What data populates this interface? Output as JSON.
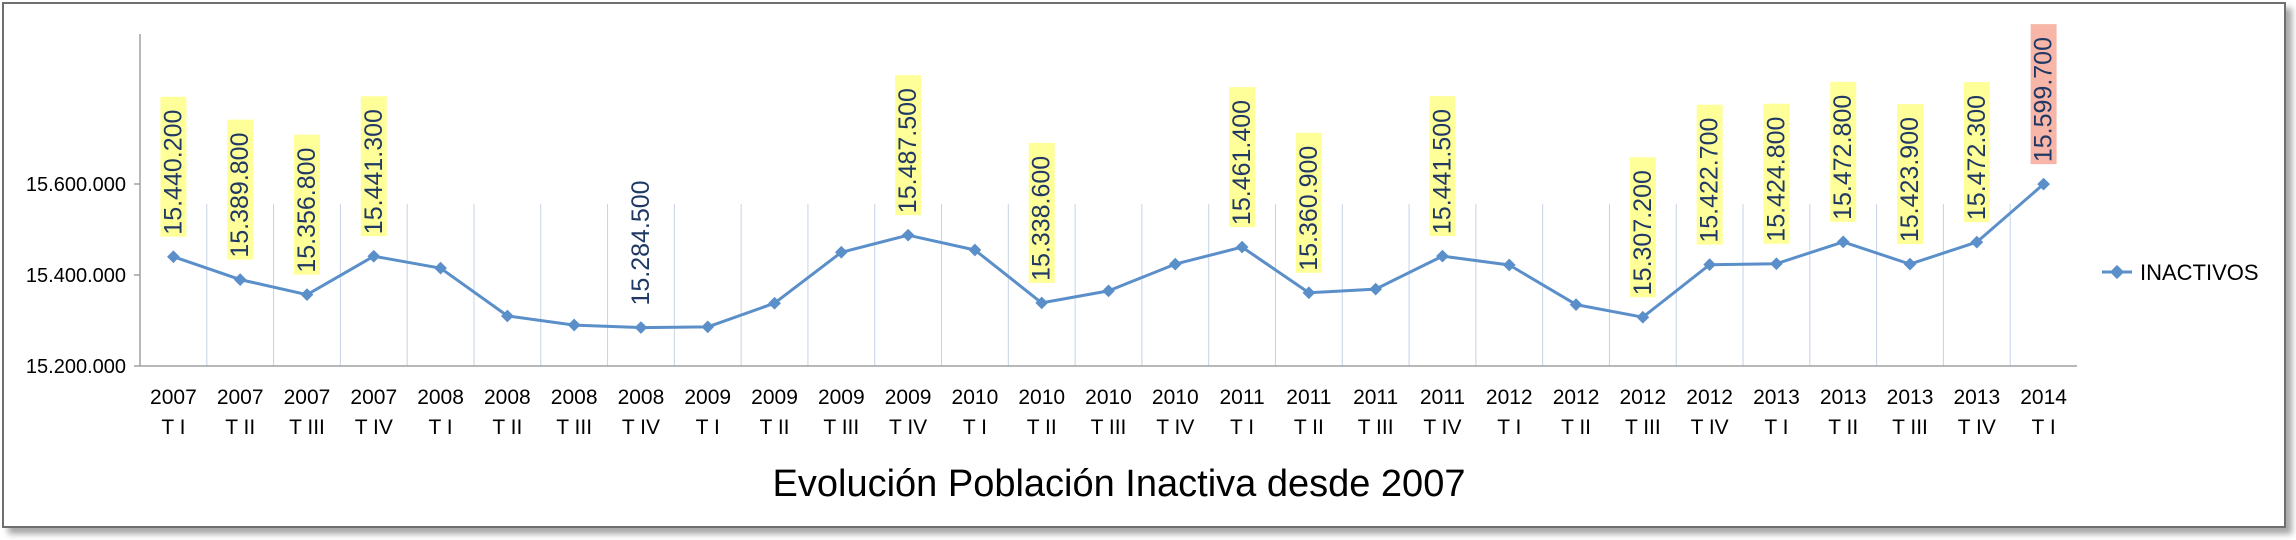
{
  "colors": {
    "series": "#5b8fc9",
    "label_bg": "#ffff99",
    "label_highlight_bg": "#f7b6a8",
    "label_text": "#1f3864",
    "grid": "#c5d3e6"
  },
  "chart_data": {
    "type": "line",
    "title": "Evolución Población Inactiva desde 2007",
    "xlabel": "",
    "ylabel": "",
    "ylim": [
      15200000,
      15800000
    ],
    "yticks": [
      15200000,
      15400000,
      15600000
    ],
    "ytick_labels": [
      "15.200.000",
      "15.400.000",
      "15.600.000"
    ],
    "legend_position": "right",
    "grid": "vertical",
    "categories": [
      {
        "year": "2007",
        "quarter": "T I"
      },
      {
        "year": "2007",
        "quarter": "T II"
      },
      {
        "year": "2007",
        "quarter": "T III"
      },
      {
        "year": "2007",
        "quarter": "T IV"
      },
      {
        "year": "2008",
        "quarter": "T I"
      },
      {
        "year": "2008",
        "quarter": "T II"
      },
      {
        "year": "2008",
        "quarter": "T III"
      },
      {
        "year": "2008",
        "quarter": "T IV"
      },
      {
        "year": "2009",
        "quarter": "T I"
      },
      {
        "year": "2009",
        "quarter": "T II"
      },
      {
        "year": "2009",
        "quarter": "T III"
      },
      {
        "year": "2009",
        "quarter": "T IV"
      },
      {
        "year": "2010",
        "quarter": "T I"
      },
      {
        "year": "2010",
        "quarter": "T II"
      },
      {
        "year": "2010",
        "quarter": "T III"
      },
      {
        "year": "2010",
        "quarter": "T IV"
      },
      {
        "year": "2011",
        "quarter": "T I"
      },
      {
        "year": "2011",
        "quarter": "T II"
      },
      {
        "year": "2011",
        "quarter": "T III"
      },
      {
        "year": "2011",
        "quarter": "T IV"
      },
      {
        "year": "2012",
        "quarter": "T I"
      },
      {
        "year": "2012",
        "quarter": "T II"
      },
      {
        "year": "2012",
        "quarter": "T III"
      },
      {
        "year": "2012",
        "quarter": "T IV"
      },
      {
        "year": "2013",
        "quarter": "T I"
      },
      {
        "year": "2013",
        "quarter": "T II"
      },
      {
        "year": "2013",
        "quarter": "T III"
      },
      {
        "year": "2013",
        "quarter": "T IV"
      },
      {
        "year": "2014",
        "quarter": "T I"
      }
    ],
    "series": [
      {
        "name": "INACTIVOS",
        "values": [
          15440200,
          15389800,
          15356800,
          15441300,
          15415000,
          15310000,
          15290000,
          15284500,
          15286000,
          15338000,
          15450000,
          15487500,
          15455000,
          15338600,
          15365000,
          15424000,
          15461400,
          15360900,
          15369000,
          15441500,
          15422000,
          15335000,
          15307200,
          15422700,
          15424800,
          15472800,
          15423900,
          15472300,
          15599700
        ]
      }
    ],
    "data_labels": [
      {
        "index": 0,
        "text": "15.440.200",
        "style": "yellow"
      },
      {
        "index": 1,
        "text": "15.389.800",
        "style": "yellow"
      },
      {
        "index": 2,
        "text": "15.356.800",
        "style": "yellow"
      },
      {
        "index": 3,
        "text": "15.441.300",
        "style": "yellow"
      },
      {
        "index": 7,
        "text": "15.284.500",
        "style": "plain"
      },
      {
        "index": 11,
        "text": "15.487.500",
        "style": "yellow"
      },
      {
        "index": 13,
        "text": "15.338.600",
        "style": "yellow"
      },
      {
        "index": 16,
        "text": "15.461.400",
        "style": "yellow"
      },
      {
        "index": 17,
        "text": "15.360.900",
        "style": "yellow"
      },
      {
        "index": 19,
        "text": "15.441.500",
        "style": "yellow"
      },
      {
        "index": 22,
        "text": "15.307.200",
        "style": "yellow"
      },
      {
        "index": 23,
        "text": "15.422.700",
        "style": "yellow"
      },
      {
        "index": 24,
        "text": "15.424.800",
        "style": "yellow"
      },
      {
        "index": 25,
        "text": "15.472.800",
        "style": "yellow"
      },
      {
        "index": 26,
        "text": "15.423.900",
        "style": "yellow"
      },
      {
        "index": 27,
        "text": "15.472.300",
        "style": "yellow"
      },
      {
        "index": 28,
        "text": "15.599.700",
        "style": "highlight"
      }
    ]
  }
}
